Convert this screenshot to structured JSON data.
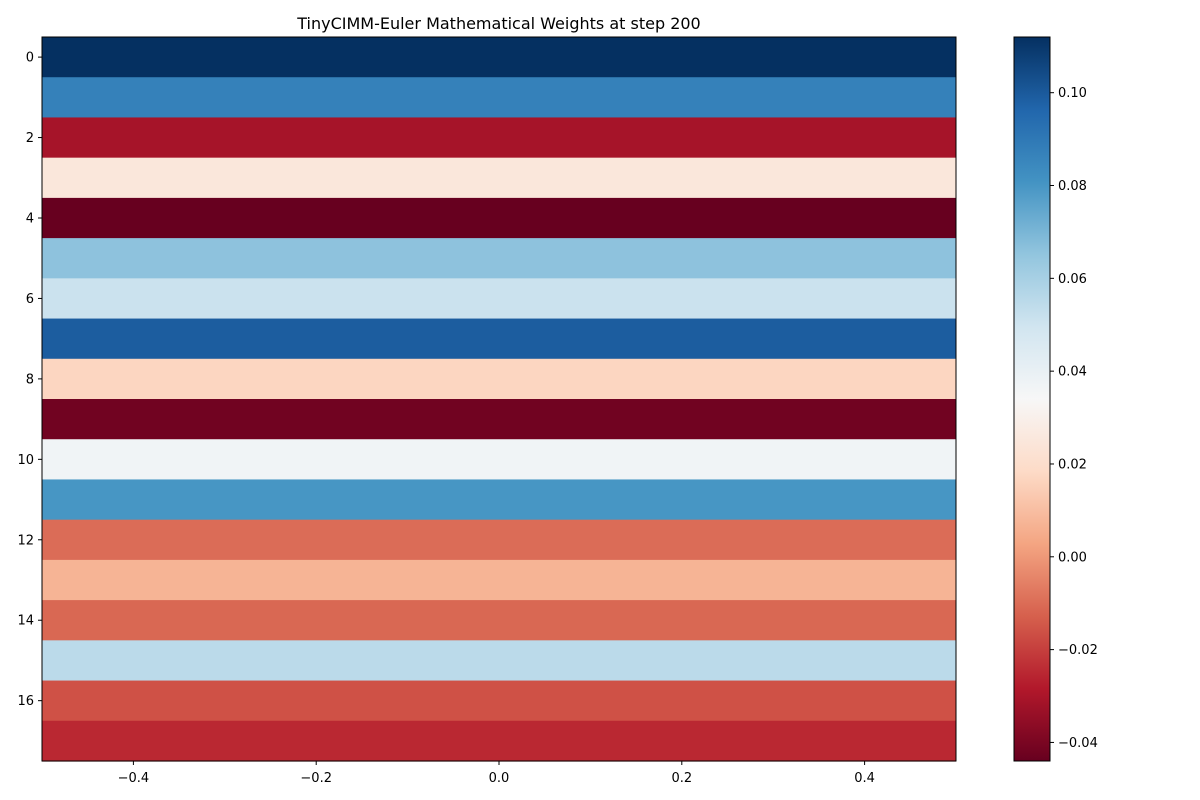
{
  "chart_data": {
    "type": "heatmap",
    "title": "TinyCIMM-Euler Mathematical Weights at step 200",
    "xlabel": "",
    "ylabel": "",
    "xlim": [
      -0.5,
      0.5
    ],
    "ylim": [
      17.5,
      -0.5
    ],
    "x_ticks": [
      -0.4,
      -0.2,
      0.0,
      0.2,
      0.4
    ],
    "x_tick_labels": [
      "−0.4",
      "−0.2",
      "0.0",
      "0.2",
      "0.4"
    ],
    "y_ticks": [
      0,
      2,
      4,
      6,
      8,
      10,
      12,
      14,
      16
    ],
    "y_tick_labels": [
      "0",
      "2",
      "4",
      "6",
      "8",
      "10",
      "12",
      "14",
      "16"
    ],
    "rows": [
      0,
      1,
      2,
      3,
      4,
      5,
      6,
      7,
      8,
      9,
      10,
      11,
      12,
      13,
      14,
      15,
      16,
      17
    ],
    "values": [
      0.112,
      0.087,
      -0.031,
      0.025,
      -0.044,
      0.066,
      0.051,
      0.099,
      0.017,
      -0.042,
      0.037,
      0.08,
      -0.01,
      0.007,
      -0.011,
      0.055,
      -0.016,
      -0.025
    ],
    "colormap": "RdBu",
    "vmin": -0.044,
    "vmax": 0.112,
    "colorbar": {
      "ticks": [
        -0.04,
        -0.02,
        0.0,
        0.02,
        0.04,
        0.06,
        0.08,
        0.1
      ],
      "tick_labels": [
        "−0.04",
        "−0.02",
        "0.00",
        "0.02",
        "0.04",
        "0.06",
        "0.08",
        "0.10"
      ]
    },
    "grid": false
  }
}
